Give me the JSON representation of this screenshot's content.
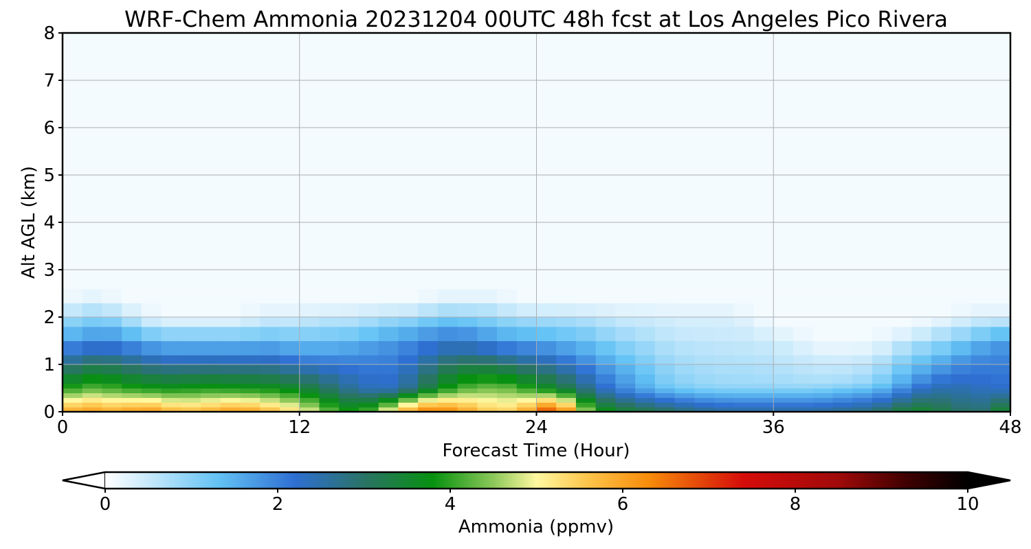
{
  "chart_data": {
    "type": "heatmap",
    "title": "WRF-Chem Ammonia  20231204 00UTC 48h fcst at Los Angeles Pico Rivera",
    "xlabel": "Forecast Time (Hour)",
    "ylabel": "Alt AGL (km)",
    "xlim": [
      0,
      48
    ],
    "ylim": [
      0,
      8
    ],
    "xticks": [
      {
        "value": 0,
        "label": "0"
      },
      {
        "value": 12,
        "label": "12"
      },
      {
        "value": 24,
        "label": "24"
      },
      {
        "value": 36,
        "label": "36"
      },
      {
        "value": 48,
        "label": "48"
      }
    ],
    "yticks": [
      {
        "value": 0,
        "label": "0"
      },
      {
        "value": 1,
        "label": "1"
      },
      {
        "value": 2,
        "label": "2"
      },
      {
        "value": 3,
        "label": "3"
      },
      {
        "value": 4,
        "label": "4"
      },
      {
        "value": 5,
        "label": "5"
      },
      {
        "value": 6,
        "label": "6"
      },
      {
        "value": 7,
        "label": "7"
      },
      {
        "value": 8,
        "label": "8"
      }
    ],
    "grid": true,
    "colorbar": {
      "label": "Ammonia  (ppmv)",
      "range": [
        0,
        10
      ],
      "extend": "both",
      "ticks": [
        {
          "value": 0,
          "label": "0"
        },
        {
          "value": 2,
          "label": "2"
        },
        {
          "value": 4,
          "label": "4"
        },
        {
          "value": 6,
          "label": "6"
        },
        {
          "value": 8,
          "label": "8"
        },
        {
          "value": 10,
          "label": "10"
        }
      ],
      "stops": [
        {
          "value": 0,
          "color": "#ffffff"
        },
        {
          "value": 0.5,
          "color": "#c8e9fb"
        },
        {
          "value": 1.3,
          "color": "#64c3f5"
        },
        {
          "value": 2.2,
          "color": "#2e6fd2"
        },
        {
          "value": 3.0,
          "color": "#2a7366"
        },
        {
          "value": 3.8,
          "color": "#07910f"
        },
        {
          "value": 4.5,
          "color": "#8cc85a"
        },
        {
          "value": 5.0,
          "color": "#fff8a0"
        },
        {
          "value": 5.6,
          "color": "#fdc44a"
        },
        {
          "value": 6.3,
          "color": "#f78c0a"
        },
        {
          "value": 7.4,
          "color": "#d50c0a"
        },
        {
          "value": 8.5,
          "color": "#a00a0a"
        },
        {
          "value": 9.3,
          "color": "#3e0000"
        },
        {
          "value": 10,
          "color": "#000000"
        }
      ],
      "under_color": "#ffffff",
      "over_color": "#000000"
    },
    "field": {
      "time_hours": [
        0,
        1,
        2,
        3,
        4,
        5,
        6,
        7,
        8,
        9,
        10,
        11,
        12,
        13,
        14,
        15,
        16,
        17,
        18,
        19,
        20,
        21,
        22,
        23,
        24,
        25,
        26,
        27,
        28,
        29,
        30,
        31,
        32,
        33,
        34,
        35,
        36,
        37,
        38,
        39,
        40,
        41,
        42,
        43,
        44,
        45,
        46,
        47,
        48
      ],
      "altitude_km": [
        0,
        0.1,
        0.2,
        0.3,
        0.4,
        0.5,
        0.6,
        0.8,
        1.0,
        1.2,
        1.5,
        1.8,
        2.0,
        2.3,
        2.6,
        3.0,
        4.0,
        5.0,
        6.0,
        7.0,
        8.0
      ],
      "background_ppmv": 0.1,
      "profiles_note_units": "ppmv",
      "surface_ppmv": [
        5.8,
        6.2,
        6.0,
        5.9,
        6.3,
        6.0,
        5.7,
        5.8,
        6.0,
        6.2,
        5.9,
        5.6,
        5.2,
        4.6,
        4.0,
        3.9,
        4.5,
        5.6,
        6.4,
        6.6,
        6.2,
        5.8,
        5.4,
        5.6,
        6.4,
        7.4,
        5.2,
        4.0,
        3.6,
        3.4,
        3.2,
        3.0,
        2.8,
        2.7,
        2.6,
        2.6,
        2.6,
        2.6,
        2.6,
        2.7,
        2.8,
        2.9,
        3.2,
        3.6,
        3.5,
        3.1,
        2.9,
        3.0,
        4.0
      ],
      "layer_mid_ppmv": [
        3.8,
        4.2,
        4.2,
        4.0,
        3.9,
        3.8,
        3.8,
        3.9,
        3.9,
        3.8,
        3.8,
        3.7,
        3.5,
        3.2,
        2.8,
        2.5,
        2.3,
        2.4,
        3.0,
        3.6,
        4.1,
        4.3,
        4.4,
        4.2,
        3.8,
        3.5,
        3.0,
        2.5,
        2.0,
        1.7,
        1.4,
        1.2,
        1.1,
        1.0,
        1.0,
        1.0,
        1.0,
        1.0,
        1.0,
        1.1,
        1.2,
        1.3,
        1.6,
        2.1,
        2.4,
        2.5,
        2.4,
        2.3,
        2.2
      ],
      "mixing_height_km": [
        1.4,
        1.5,
        1.6,
        1.5,
        1.4,
        1.3,
        1.3,
        1.3,
        1.3,
        1.3,
        1.3,
        1.3,
        1.2,
        1.2,
        1.2,
        1.3,
        1.4,
        1.5,
        1.6,
        1.7,
        1.7,
        1.6,
        1.5,
        1.4,
        1.4,
        1.3,
        1.2,
        1.0,
        0.7,
        0.5,
        0.35,
        0.25,
        0.2,
        0.18,
        0.16,
        0.15,
        0.15,
        0.15,
        0.15,
        0.15,
        0.18,
        0.25,
        0.4,
        0.6,
        0.8,
        1.0,
        1.2,
        1.4,
        1.5
      ],
      "haze_top_km": [
        2.2,
        2.3,
        2.3,
        2.2,
        2.0,
        1.9,
        1.9,
        1.9,
        1.9,
        1.9,
        2.0,
        2.0,
        2.0,
        2.1,
        2.1,
        2.1,
        2.2,
        2.2,
        2.2,
        2.3,
        2.3,
        2.3,
        2.3,
        2.2,
        2.2,
        2.2,
        2.2,
        2.2,
        2.1,
        2.1,
        2.1,
        2.0,
        2.0,
        2.0,
        2.0,
        1.9,
        1.7,
        1.5,
        1.3,
        1.2,
        1.2,
        1.3,
        1.5,
        1.7,
        1.8,
        1.9,
        2.0,
        2.0,
        2.0
      ]
    }
  }
}
